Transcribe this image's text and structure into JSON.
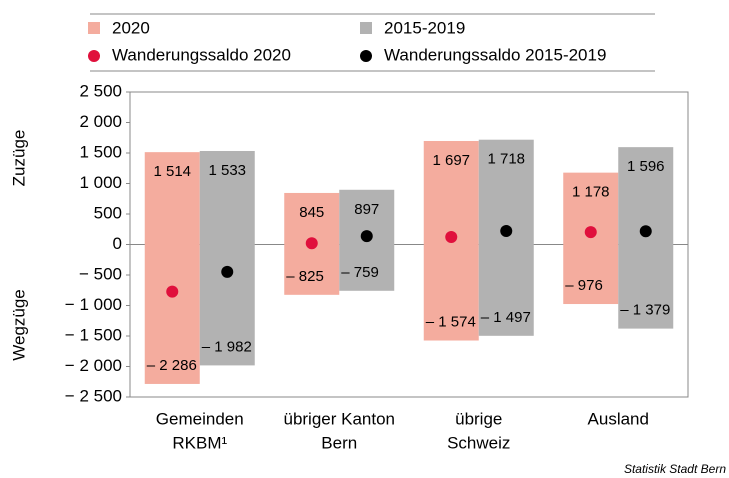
{
  "chart_data": {
    "type": "range-bar",
    "categories": [
      [
        "Gemeinden",
        "RKBM¹"
      ],
      [
        "übriger Kanton",
        "Bern"
      ],
      [
        "übrige",
        "Schweiz"
      ],
      [
        "Ausland"
      ]
    ],
    "y_label_top": "Zuzüge",
    "y_label_bottom": "Wegzüge",
    "source": "Statistik Stadt Bern",
    "ylim": [
      -2500,
      2500
    ],
    "yticks": [
      {
        "value": -2500,
        "label": "− 2 500"
      },
      {
        "value": -2000,
        "label": "− 2 000"
      },
      {
        "value": -1500,
        "label": "− 1 500"
      },
      {
        "value": -1000,
        "label": "− 1 000"
      },
      {
        "value": -500,
        "label": "− 500"
      },
      0,
      500,
      {
        "value": 1000,
        "label": "1 000"
      },
      {
        "value": 1500,
        "label": "1 500"
      },
      {
        "value": 2000,
        "label": "2 000"
      },
      {
        "value": 2500,
        "label": "2 500"
      }
    ],
    "series": [
      {
        "name": "2020",
        "color": "#f4ac9e",
        "inflow": [
          1514,
          845,
          1697,
          1178
        ],
        "inflow_labels": [
          "1 514",
          "845",
          "1 697",
          "1 178"
        ],
        "outflow": [
          -2286,
          -825,
          -1574,
          -976
        ],
        "outflow_labels": [
          "– 2 286",
          "– 825",
          "– 1 574",
          "– 976"
        ]
      },
      {
        "name": "2015-2019",
        "color": "#b2b2b2",
        "inflow": [
          1533,
          897,
          1718,
          1596
        ],
        "inflow_labels": [
          "1 533",
          "897",
          "1 718",
          "1 596"
        ],
        "outflow": [
          -1982,
          -759,
          -1497,
          -1379
        ],
        "outflow_labels": [
          "– 1 982",
          "– 759",
          "– 1 497",
          "– 1 379"
        ]
      }
    ],
    "balance": [
      {
        "name": "Wanderungssaldo 2020",
        "color": "#e0103c",
        "values": [
          -772,
          20,
          123,
          202
        ]
      },
      {
        "name": "Wanderungssaldo 2015-2019",
        "color": "#000000",
        "values": [
          -449,
          138,
          221,
          217
        ]
      }
    ]
  }
}
